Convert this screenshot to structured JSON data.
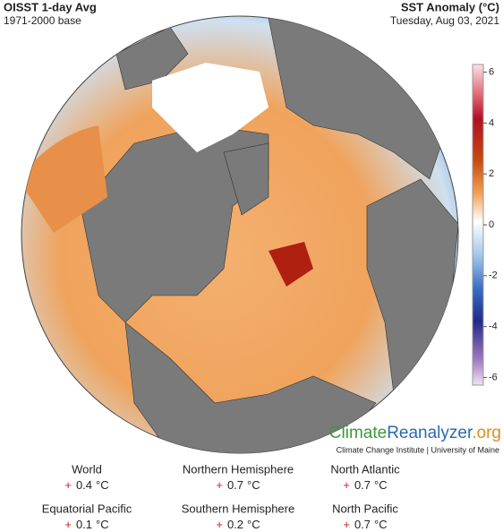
{
  "header": {
    "title": "OISST 1-day Avg",
    "base": "1971-2000 base",
    "metric": "SST Anomaly (°C)",
    "date": "Tuesday, Aug 03, 2021"
  },
  "colorbar": {
    "lim": [
      -6.3,
      6.3
    ],
    "ticks": [
      6,
      4,
      2,
      0,
      -2,
      -4,
      -6
    ]
  },
  "credit": {
    "name_parts": [
      "Climate",
      "Reanalyzer",
      ".org"
    ],
    "institute": "Climate Change Institute | University of Maine"
  },
  "stats": [
    {
      "label": "World",
      "sign": "+",
      "value": 0.4,
      "unit": "°C"
    },
    {
      "label": "Northern Hemisphere",
      "sign": "+",
      "value": 0.7,
      "unit": "°C"
    },
    {
      "label": "North Atlantic",
      "sign": "+",
      "value": 0.7,
      "unit": "°C"
    },
    {
      "label": "Equatorial Pacific",
      "sign": "+",
      "value": 0.1,
      "unit": "°C"
    },
    {
      "label": "Southern Hemisphere",
      "sign": "+",
      "value": 0.2,
      "unit": "°C"
    },
    {
      "label": "North Pacific",
      "sign": "+",
      "value": 0.7,
      "unit": "°C"
    }
  ]
}
